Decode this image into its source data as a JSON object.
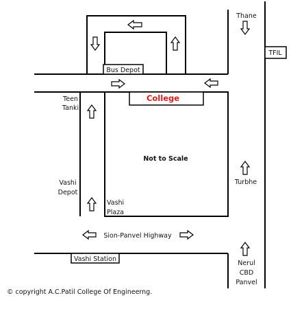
{
  "labels": {
    "thane": "Thane",
    "tfil": "TFIL",
    "bus_depot": "Bus Depot",
    "college": "College",
    "teen_tanki": [
      "Teen",
      "Tanki"
    ],
    "not_to_scale": "Not to Scale",
    "turbhe": "Turbhe",
    "vashi_depot": [
      "Vashi",
      "Depot"
    ],
    "vashi_plaza": [
      "Vashi",
      "Plaza"
    ],
    "highway": "Sion-Panvel Highway",
    "vashi_station": "Vashi Station",
    "nerul": [
      "Nerul",
      "CBD",
      "Panvel"
    ],
    "copyright": "© copyright A.C.Patil College Of Engineerng."
  },
  "colors": {
    "line": "#000000",
    "college_text": "#e01b1b",
    "background": "#ffffff"
  },
  "icons": {
    "direction_arrows": "outline-arrow"
  }
}
